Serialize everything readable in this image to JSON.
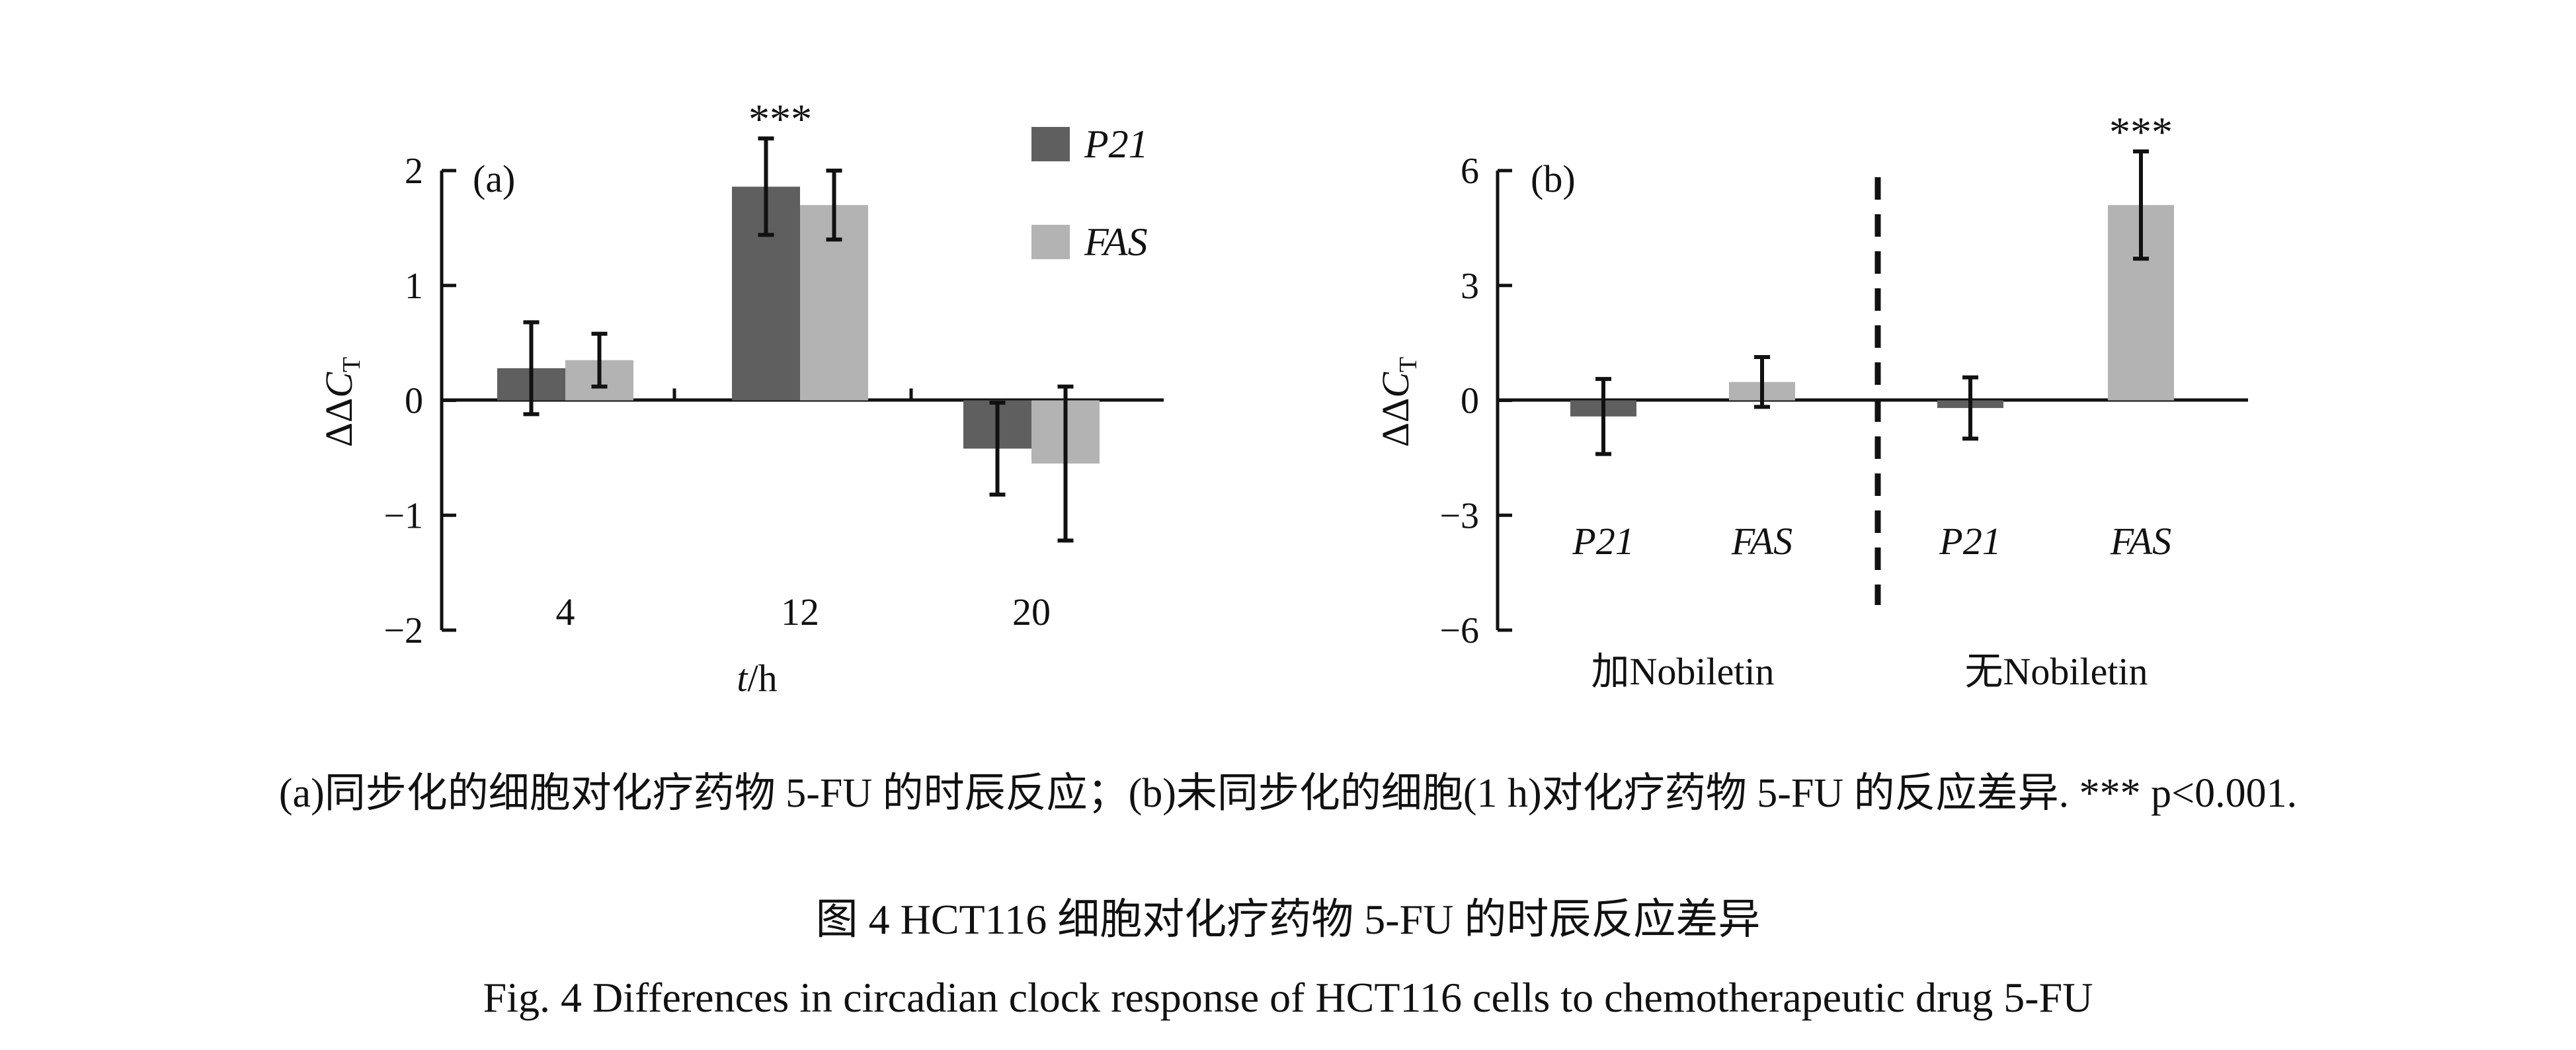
{
  "chart_data": [
    {
      "type": "bar",
      "panel_label": "(a)",
      "categories": [
        "4",
        "12",
        "20"
      ],
      "xlabel": "t/h",
      "ylabel": "ΔΔC_T",
      "ylim": [
        -2,
        2
      ],
      "yticks": [
        "2",
        "1",
        "0",
        "−1",
        "−2"
      ],
      "legend": {
        "placement": "top-right"
      },
      "series": [
        {
          "name": "P21",
          "color": "#5f5f5f",
          "values": [
            0.28,
            1.86,
            -0.42
          ],
          "errors": [
            0.4,
            0.42,
            0.4
          ]
        },
        {
          "name": "FAS",
          "color": "#b3b3b3",
          "values": [
            0.35,
            1.7,
            -0.55
          ],
          "errors": [
            0.23,
            0.3,
            0.67
          ]
        }
      ],
      "annotations": [
        {
          "category": "12",
          "text": "***"
        }
      ]
    },
    {
      "type": "bar",
      "panel_label": "(b)",
      "ylabel": "ΔΔC_T",
      "ylim": [
        -6,
        6
      ],
      "yticks": [
        "6",
        "3",
        "0",
        "−3",
        "−6"
      ],
      "groups": [
        "加Nobiletin",
        "无Nobiletin"
      ],
      "bars": [
        {
          "label": "P21",
          "group": "加Nobiletin",
          "value": -0.42,
          "error": 0.98,
          "color": "#5f5f5f"
        },
        {
          "label": "FAS",
          "group": "加Nobiletin",
          "value": 0.48,
          "error": 0.65,
          "color": "#b3b3b3"
        },
        {
          "label": "P21",
          "group": "无Nobiletin",
          "value": -0.2,
          "error": 0.8,
          "color": "#5f5f5f"
        },
        {
          "label": "FAS",
          "group": "无Nobiletin",
          "value": 5.1,
          "error": 1.4,
          "color": "#b3b3b3"
        }
      ],
      "annotations": [
        {
          "bar_index": 3,
          "text": "***"
        }
      ]
    }
  ],
  "caption": {
    "sub": "(a)同步化的细胞对化疗药物 5-FU 的时辰反应；(b)未同步化的细胞(1 h)对化疗药物 5-FU 的反应差异. *** p<0.001.",
    "title_cn": "图 4    HCT116 细胞对化疗药物 5-FU 的时辰反应差异",
    "title_en": "Fig. 4  Differences in circadian clock response of HCT116 cells to chemotherapeutic drug 5-FU"
  }
}
